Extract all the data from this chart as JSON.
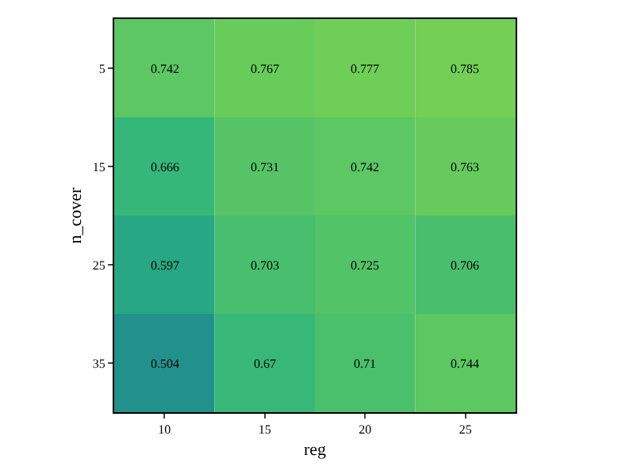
{
  "chart_data": {
    "type": "heatmap",
    "xlabel": "reg",
    "ylabel": "n_cover",
    "categories": [
      "10",
      "15",
      "20",
      "25"
    ],
    "y_categories": [
      "5",
      "15",
      "25",
      "35"
    ],
    "cells": [
      [
        0.742,
        0.767,
        0.777,
        0.785
      ],
      [
        0.666,
        0.731,
        0.742,
        0.763
      ],
      [
        0.597,
        0.703,
        0.725,
        0.706
      ],
      [
        0.504,
        0.67,
        0.71,
        0.744
      ]
    ],
    "data_labels": true
  }
}
